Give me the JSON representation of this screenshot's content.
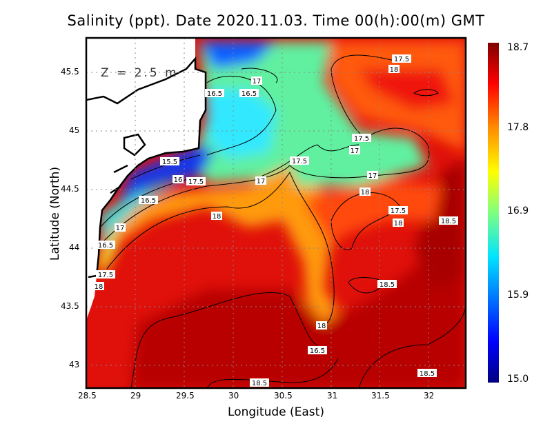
{
  "title": "Salinity (ppt). Date 2020.11.03. Time 00(h):00(m) GMT",
  "depth_label": "Z = 2.5 m",
  "xlabel": "Longitude (East)",
  "ylabel": "Latitude (North)",
  "x_ticks": [
    "28.5",
    "29",
    "29.5",
    "30",
    "30.5",
    "31",
    "31.5",
    "32"
  ],
  "y_ticks": [
    "45.5",
    "45",
    "44.5",
    "44",
    "43.5",
    "43"
  ],
  "colorbar": {
    "ticks": [
      "18.7",
      "17.8",
      "16.9",
      "15.9",
      "15.0"
    ],
    "min": 15.0,
    "max": 18.7
  },
  "contour_labels": [
    "17.5",
    "18",
    "17",
    "16.5",
    "16.5",
    "16.5",
    "17.5",
    "17",
    "15.5",
    "17.5",
    "17",
    "16",
    "17.5",
    "18",
    "17",
    "18",
    "17.5",
    "18",
    "18.5",
    "17",
    "16.5",
    "17.5",
    "18",
    "18.5",
    "18",
    "16.5",
    "18.5",
    "18.5"
  ],
  "chart_data": {
    "type": "heatmap",
    "title": "Salinity (ppt). Date 2020.11.03. Time 00(h):00(m) GMT",
    "xlabel": "Longitude (East)",
    "ylabel": "Latitude (North)",
    "xlim": [
      28.5,
      32.4
    ],
    "ylim": [
      42.8,
      45.8
    ],
    "contour_levels": [
      15.5,
      16,
      16.5,
      17,
      17.5,
      18,
      18.5
    ],
    "colorbar_range": [
      15.0,
      18.7
    ]
  }
}
